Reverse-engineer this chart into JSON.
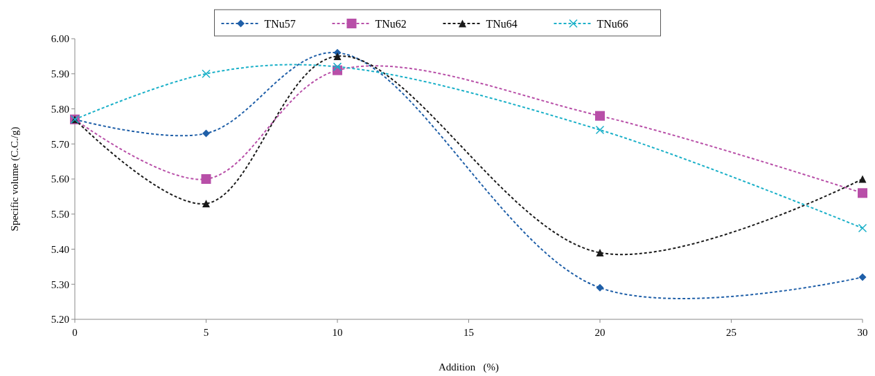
{
  "chart_data": {
    "type": "line",
    "xlabel": "Addition   (%)",
    "ylabel": "Specific volume (C.C./g)",
    "x": [
      0,
      5,
      10,
      20,
      30
    ],
    "series": [
      {
        "name": "TNu57",
        "color": "#1f5fa8",
        "marker": "diamond",
        "values": [
          5.77,
          5.73,
          5.96,
          5.29,
          5.32
        ]
      },
      {
        "name": "TNu62",
        "color": "#b84fa8",
        "marker": "square",
        "values": [
          5.77,
          5.6,
          5.91,
          5.78,
          5.56
        ]
      },
      {
        "name": "TNu64",
        "color": "#1a1a1a",
        "marker": "triangle",
        "values": [
          5.77,
          5.53,
          5.95,
          5.39,
          5.6
        ]
      },
      {
        "name": "TNu66",
        "color": "#1ab0c8",
        "marker": "cross",
        "values": [
          5.77,
          5.9,
          5.92,
          5.74,
          5.46
        ]
      }
    ],
    "xlim": [
      0,
      30
    ],
    "xticks": [
      0,
      5,
      10,
      15,
      20,
      25,
      30
    ],
    "ylim": [
      5.2,
      6.0
    ],
    "yticks": [
      {
        "value": 5.2,
        "label": "5.20"
      },
      {
        "value": 5.3,
        "label": "5.30"
      },
      {
        "value": 5.4,
        "label": "5.40"
      },
      {
        "value": 5.5,
        "label": "5.50"
      },
      {
        "value": 5.6,
        "label": "5.60"
      },
      {
        "value": 5.7,
        "label": "5.70"
      },
      {
        "value": 5.8,
        "label": "5.80"
      },
      {
        "value": 5.9,
        "label": "5.90"
      },
      {
        "value": 6.0,
        "label": "6.00"
      }
    ],
    "grid": false,
    "legend": "top",
    "line_style": "dashed"
  }
}
